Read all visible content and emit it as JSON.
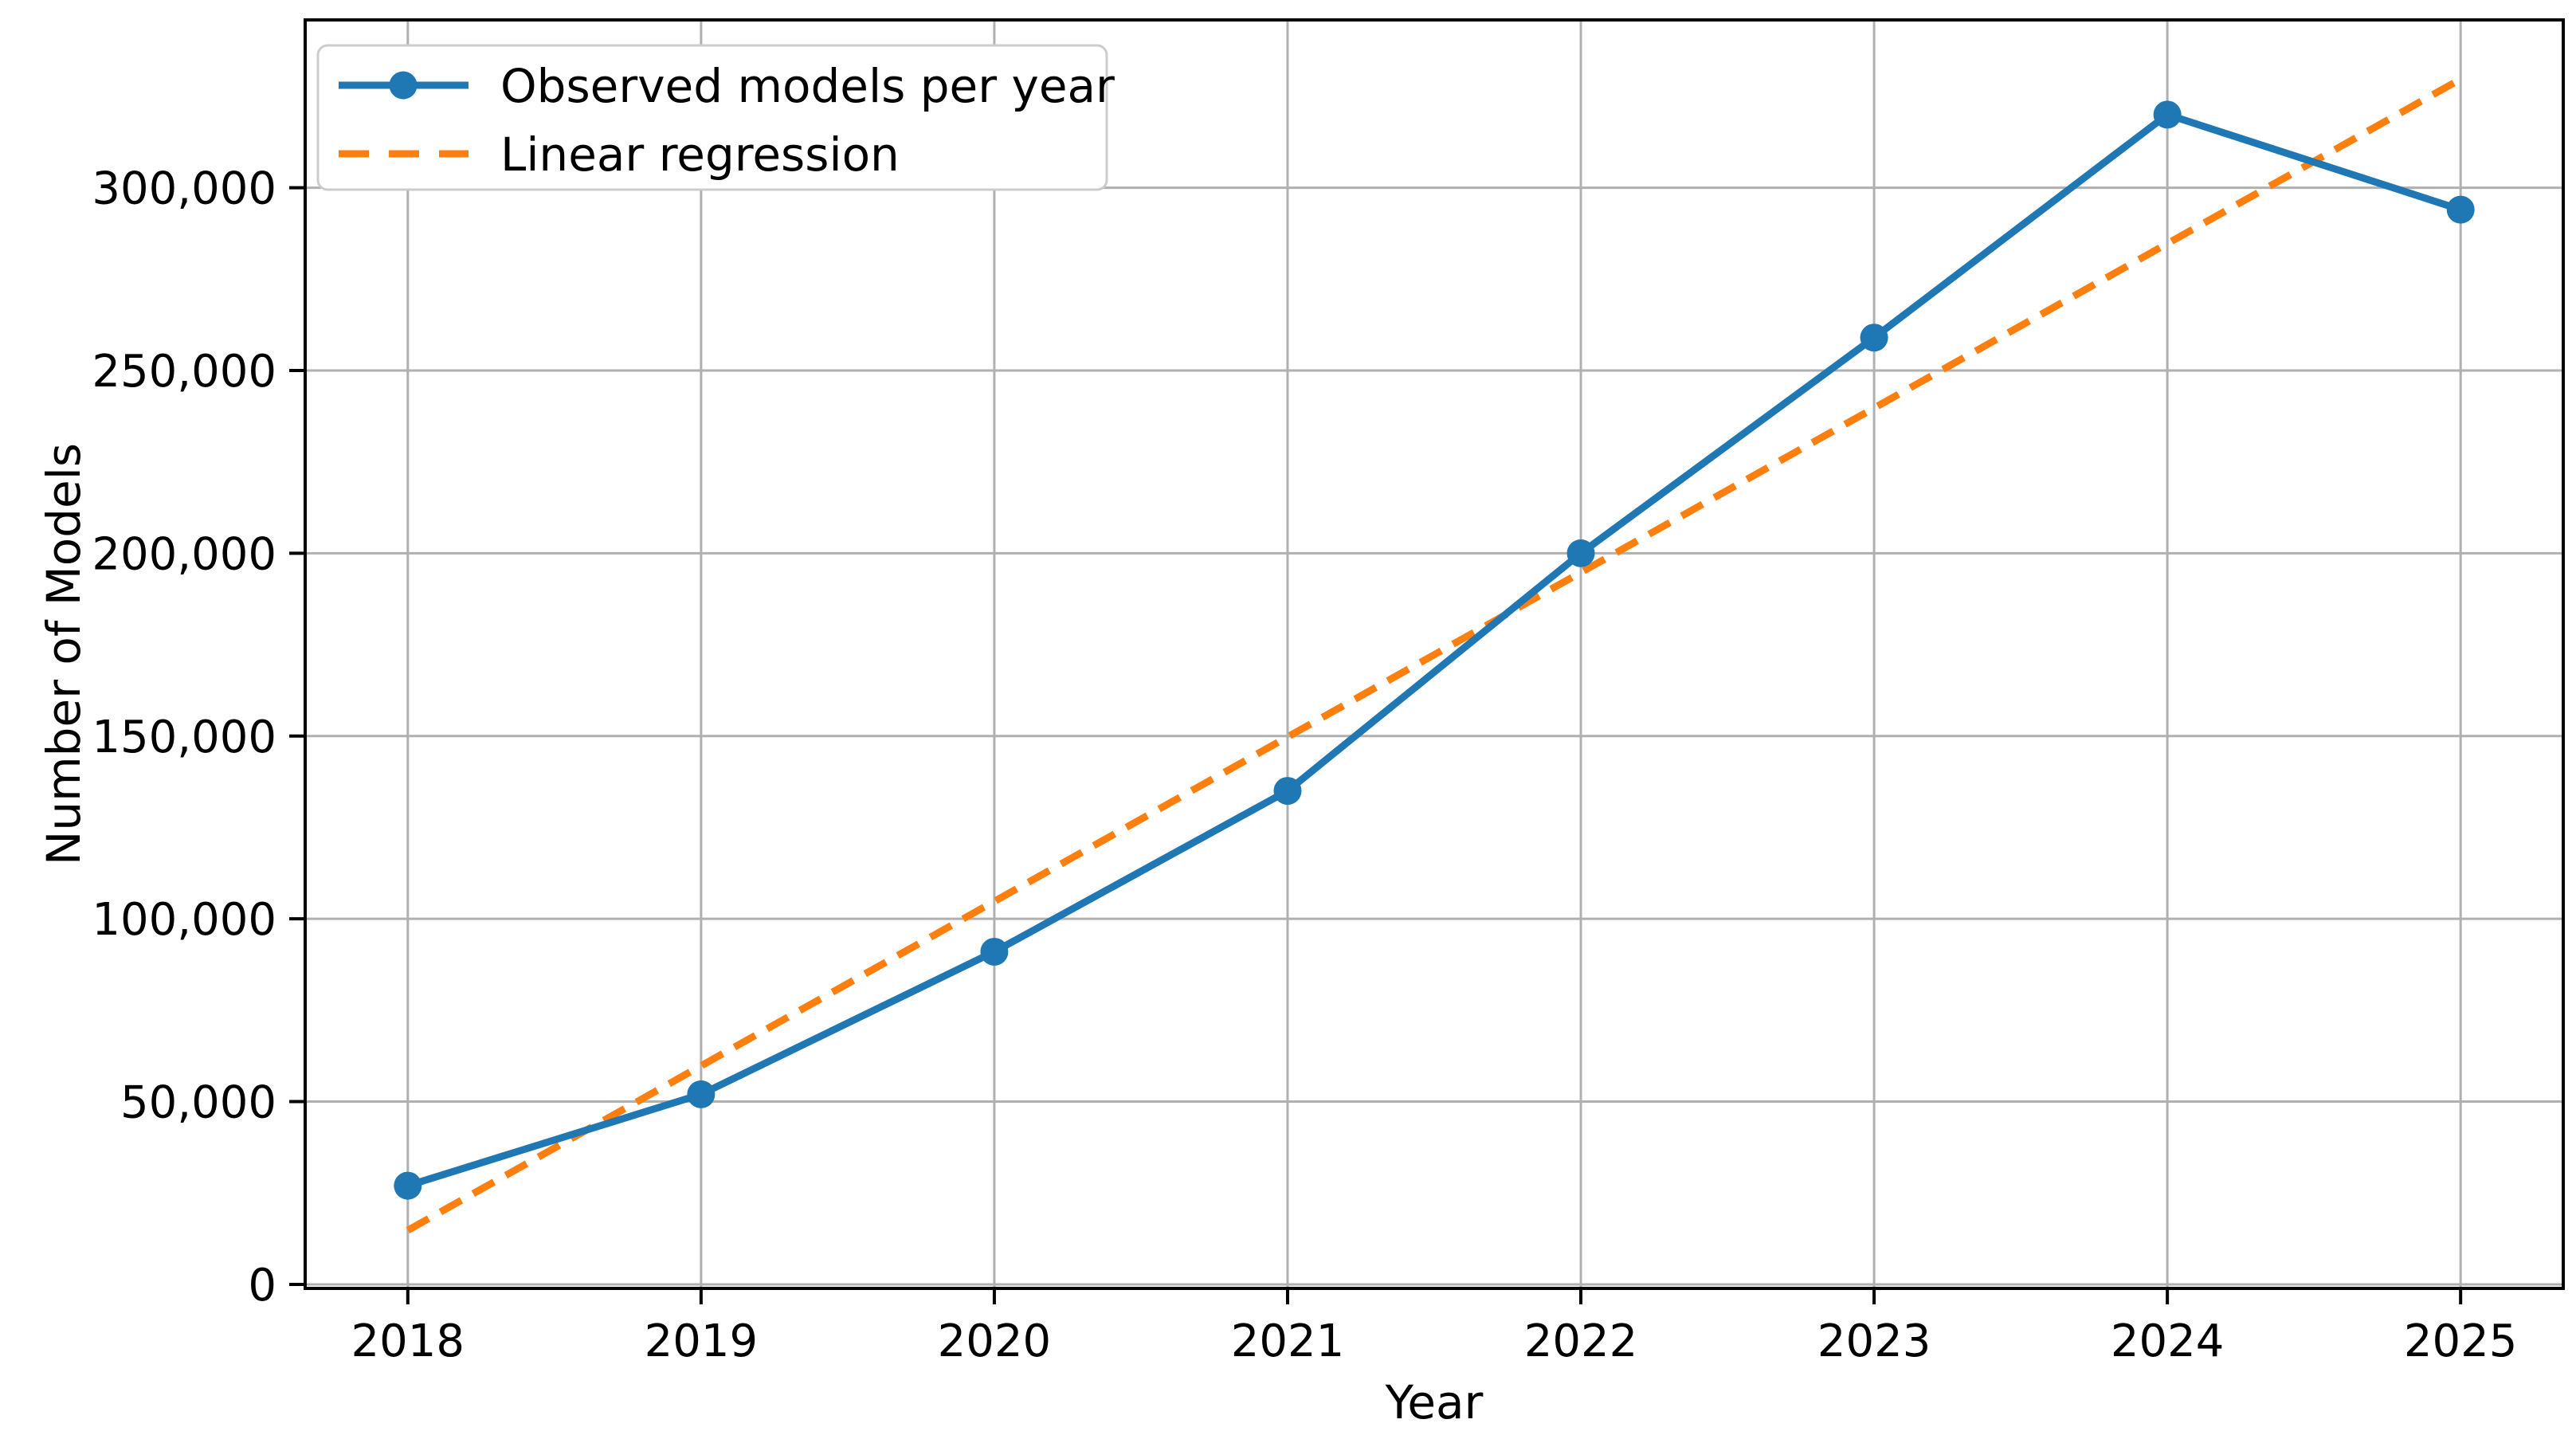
{
  "chart_data": {
    "type": "line",
    "title": "",
    "xlabel": "Year",
    "ylabel": "Number of Models",
    "x": [
      2018,
      2019,
      2020,
      2021,
      2022,
      2023,
      2024,
      2025
    ],
    "series": [
      {
        "name": "Observed models per year",
        "values": [
          27000,
          52000,
          91000,
          135000,
          200000,
          259000,
          320000,
          294000
        ],
        "color": "#1f77b4",
        "line_style": "solid",
        "marker": "circle"
      },
      {
        "name": "Linear regression",
        "endpoints_x": [
          2018,
          2025
        ],
        "endpoints_y": [
          14800,
          329700
        ],
        "color": "#ff7f0e",
        "line_style": "dashed",
        "marker": "none"
      }
    ],
    "xlim": [
      2017.65,
      2025.35
    ],
    "ylim": [
      -1100,
      345900
    ],
    "xticks": [
      2018,
      2019,
      2020,
      2021,
      2022,
      2023,
      2024,
      2025
    ],
    "xtick_labels": [
      "2018",
      "2019",
      "2020",
      "2021",
      "2022",
      "2023",
      "2024",
      "2025"
    ],
    "yticks": [
      0,
      50000,
      100000,
      150000,
      200000,
      250000,
      300000
    ],
    "ytick_labels": [
      "0",
      "50,000",
      "100,000",
      "150,000",
      "200,000",
      "250,000",
      "300,000"
    ],
    "grid": true,
    "legend_position": "upper left",
    "colors": {
      "grid": "#b0b0b0",
      "spine": "#000000",
      "legend_border": "#cccccc",
      "background": "#ffffff",
      "text": "#000000"
    }
  }
}
